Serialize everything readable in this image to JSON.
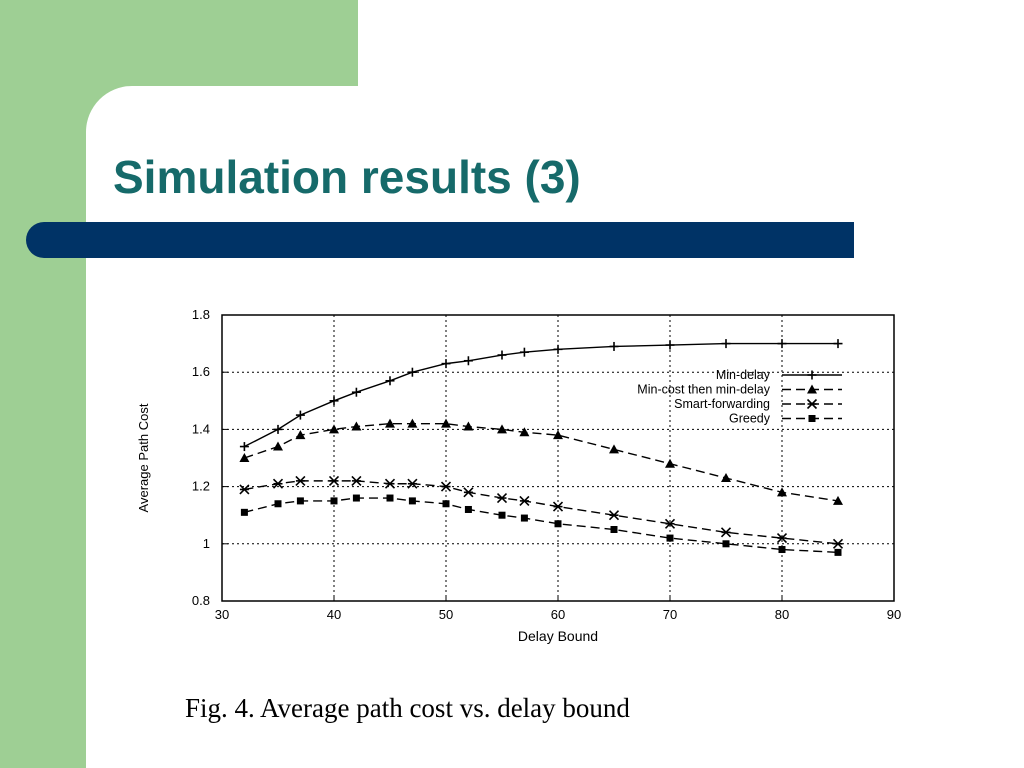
{
  "slide": {
    "title": "Simulation results (3)",
    "caption": "Fig. 4.   Average path cost vs. delay bound"
  },
  "colors": {
    "left_band": "#9ecf94",
    "title": "#166a6a",
    "title_bar": "#003366"
  },
  "chart_data": {
    "type": "line",
    "xlabel": "Delay Bound",
    "ylabel": "Average Path Cost",
    "xlim": [
      30,
      90
    ],
    "ylim": [
      0.8,
      1.8
    ],
    "xticks": [
      "30",
      "40",
      "50",
      "60",
      "70",
      "80",
      "90"
    ],
    "yticks": [
      "0.8",
      "1",
      "1.2",
      "1.4",
      "1.6",
      "1.8"
    ],
    "grid": true,
    "legend_position": "top-right",
    "series": [
      {
        "name": "Min-delay",
        "marker": "plus",
        "dash": "solid",
        "x": [
          32,
          35,
          37,
          40,
          42,
          45,
          47,
          50,
          52,
          55,
          57,
          60,
          65,
          70,
          75,
          80,
          85
        ],
        "y": [
          1.34,
          1.4,
          1.45,
          1.5,
          1.53,
          1.57,
          1.6,
          1.63,
          1.64,
          1.66,
          1.67,
          1.68,
          1.69,
          1.695,
          1.7,
          1.7,
          1.7
        ]
      },
      {
        "name": "Min-cost then min-delay",
        "marker": "triangle",
        "dash": "dashed",
        "x": [
          32,
          35,
          37,
          40,
          42,
          45,
          47,
          50,
          52,
          55,
          57,
          60,
          65,
          70,
          75,
          80,
          85
        ],
        "y": [
          1.3,
          1.34,
          1.38,
          1.4,
          1.41,
          1.42,
          1.42,
          1.42,
          1.41,
          1.4,
          1.39,
          1.38,
          1.33,
          1.28,
          1.23,
          1.18,
          1.15
        ]
      },
      {
        "name": "Smart-forwarding",
        "marker": "star",
        "dash": "dashed",
        "x": [
          32,
          35,
          37,
          40,
          42,
          45,
          47,
          50,
          52,
          55,
          57,
          60,
          65,
          70,
          75,
          80,
          85
        ],
        "y": [
          1.19,
          1.21,
          1.22,
          1.22,
          1.22,
          1.21,
          1.21,
          1.2,
          1.18,
          1.16,
          1.15,
          1.13,
          1.1,
          1.07,
          1.04,
          1.02,
          1.0
        ]
      },
      {
        "name": "Greedy",
        "marker": "filled-square",
        "dash": "dashed",
        "x": [
          32,
          35,
          37,
          40,
          42,
          45,
          47,
          50,
          52,
          55,
          57,
          60,
          65,
          70,
          75,
          80,
          85
        ],
        "y": [
          1.11,
          1.14,
          1.15,
          1.15,
          1.16,
          1.16,
          1.15,
          1.14,
          1.12,
          1.1,
          1.09,
          1.07,
          1.05,
          1.02,
          1.0,
          0.98,
          0.97
        ]
      }
    ]
  }
}
